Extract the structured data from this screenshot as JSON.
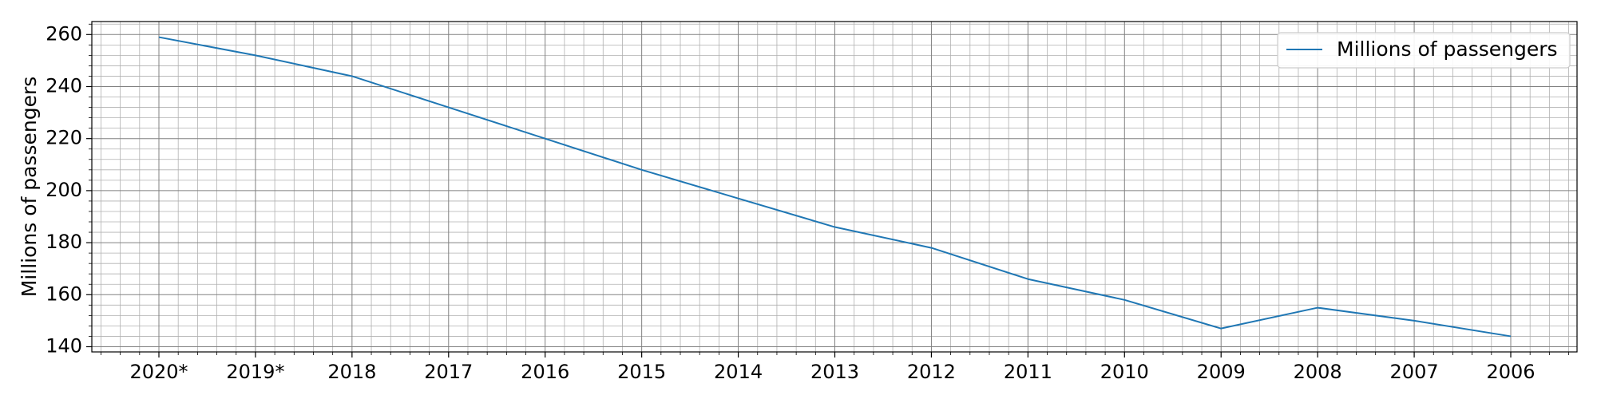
{
  "chart_data": {
    "type": "line",
    "categories": [
      "2020*",
      "2019*",
      "2018",
      "2017",
      "2016",
      "2015",
      "2014",
      "2013",
      "2012",
      "2011",
      "2010",
      "2009",
      "2008",
      "2007",
      "2006"
    ],
    "series": [
      {
        "name": "Millions of passengers",
        "values": [
          259,
          252,
          244,
          232,
          220,
          208,
          197,
          186,
          178,
          166,
          158,
          147,
          155,
          150,
          144
        ],
        "color": "#1f77b4"
      }
    ],
    "ylabel": "Millions of passengers",
    "xlabel": "",
    "ylim": [
      138,
      265
    ],
    "yticks": [
      140,
      160,
      180,
      200,
      220,
      240,
      260
    ],
    "grid": true,
    "minor_grid": true,
    "legend_position": "top-right"
  }
}
